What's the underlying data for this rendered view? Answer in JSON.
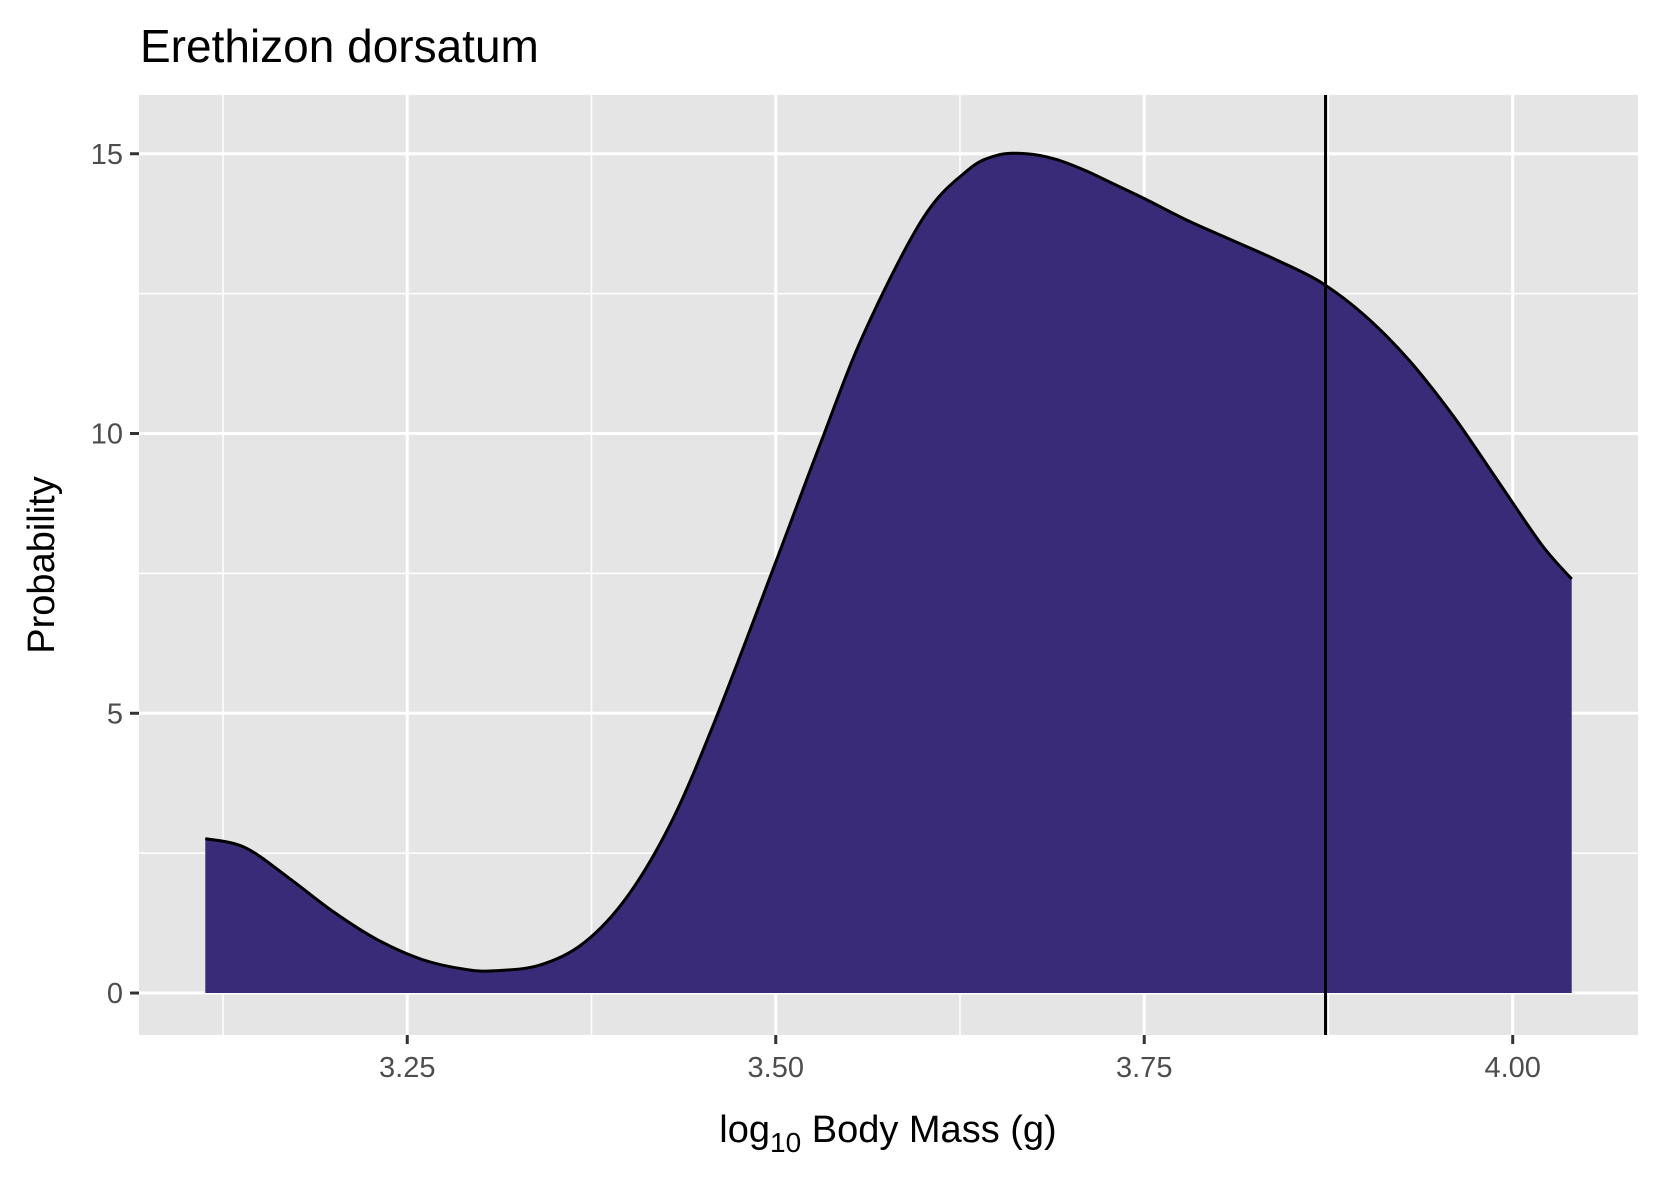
{
  "chart_data": {
    "type": "area",
    "title": "Erethizon dorsatum",
    "xlabel": {
      "prefix": "log",
      "subscript": "10",
      "suffix": " Body Mass (g)"
    },
    "ylabel": "Probability",
    "xlim": [
      3.068,
      4.085
    ],
    "ylim": [
      -0.75,
      16.05
    ],
    "x_ticks": [
      3.25,
      3.5,
      3.75,
      4.0
    ],
    "x_tick_labels": [
      "3.25",
      "3.50",
      "3.75",
      "4.00"
    ],
    "y_ticks": [
      0,
      5,
      10,
      15
    ],
    "y_tick_labels": [
      "0",
      "5",
      "10",
      "15"
    ],
    "grid": true,
    "fill_color": "#3a2b78",
    "line_color": "#000000",
    "panel_color": "#e5e5e5",
    "vline_x": 3.873,
    "series": [
      {
        "x": [
          3.113,
          3.14,
          3.17,
          3.2,
          3.23,
          3.26,
          3.29,
          3.31,
          3.34,
          3.37,
          3.4,
          3.43,
          3.46,
          3.5,
          3.53,
          3.56,
          3.6,
          3.63,
          3.65,
          3.67,
          3.69,
          3.71,
          3.73,
          3.75,
          3.78,
          3.81,
          3.84,
          3.87,
          3.9,
          3.93,
          3.96,
          3.99,
          4.02,
          4.04
        ],
        "y": [
          2.76,
          2.6,
          2.05,
          1.45,
          0.95,
          0.6,
          0.42,
          0.4,
          0.5,
          0.9,
          1.75,
          3.1,
          4.95,
          7.7,
          9.8,
          11.8,
          13.85,
          14.7,
          14.97,
          15.0,
          14.9,
          14.7,
          14.45,
          14.2,
          13.8,
          13.45,
          13.1,
          12.7,
          12.1,
          11.3,
          10.3,
          9.15,
          8.0,
          7.4
        ]
      }
    ]
  }
}
